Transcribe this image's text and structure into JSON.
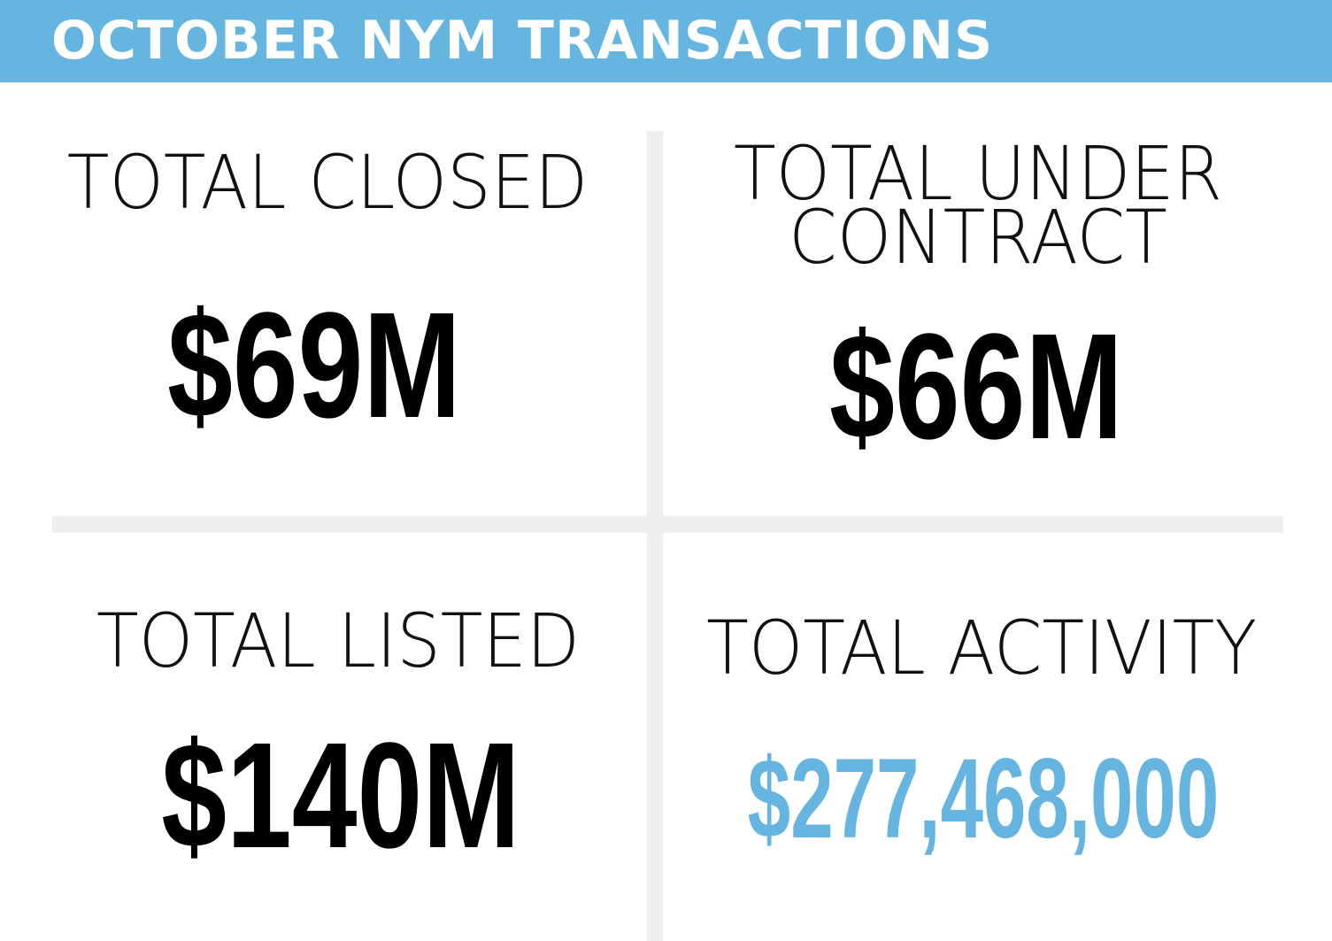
{
  "header": {
    "title": "OCTOBER NYM TRANSACTIONS"
  },
  "stats": {
    "closed": {
      "label": "TOTAL CLOSED",
      "value": "$69M"
    },
    "under_contract": {
      "label_line1": "TOTAL UNDER",
      "label_line2": "CONTRACT",
      "value": "$66M"
    },
    "listed": {
      "label": "TOTAL LISTED",
      "value": "$140M"
    },
    "activity": {
      "label": "TOTAL ACTIVITY",
      "value": "$277,468,000"
    }
  },
  "colors": {
    "accent": "#65b5e0",
    "divider": "#eeeff1",
    "text": "#000000"
  }
}
